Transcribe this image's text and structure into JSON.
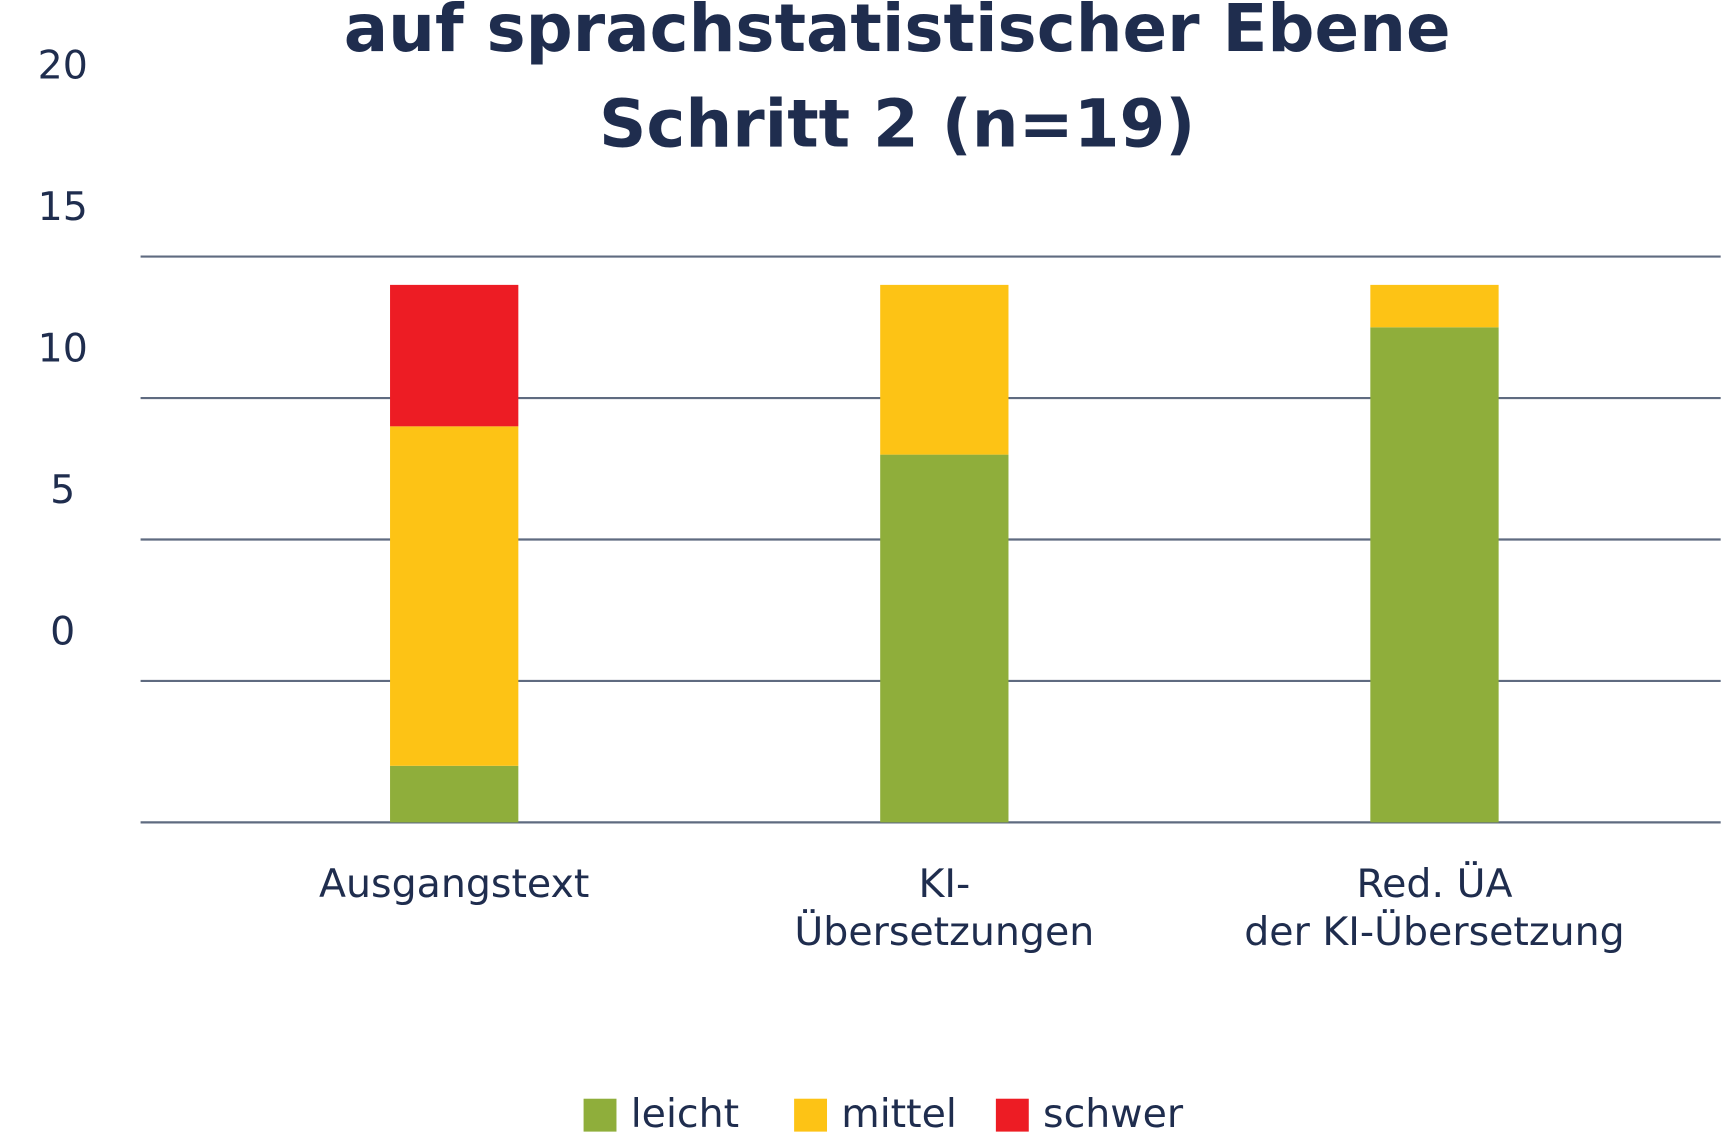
{
  "chart_data": {
    "type": "stacked_bar",
    "title": [
      "auf sprachstatistischer Ebene",
      "Schritt 2 (n=19)"
    ],
    "categories": [
      [
        "Ausgangstext"
      ],
      [
        "KI-",
        "Übersetzungen"
      ],
      [
        "Red. ÜA",
        "der KI-Übersetzung"
      ]
    ],
    "series": [
      {
        "name": "leicht",
        "color": "#8fae3b",
        "values": [
          2,
          13,
          17.5
        ]
      },
      {
        "name": "mittel",
        "color": "#fdc315",
        "values": [
          12,
          6,
          1.5
        ]
      },
      {
        "name": "schwer",
        "color": "#ed1c24",
        "values": [
          5,
          0,
          0
        ]
      }
    ],
    "ylim": [
      0,
      20
    ],
    "yticks": [
      0,
      5,
      10,
      15,
      20
    ],
    "grid": true,
    "legend": "bottom"
  }
}
